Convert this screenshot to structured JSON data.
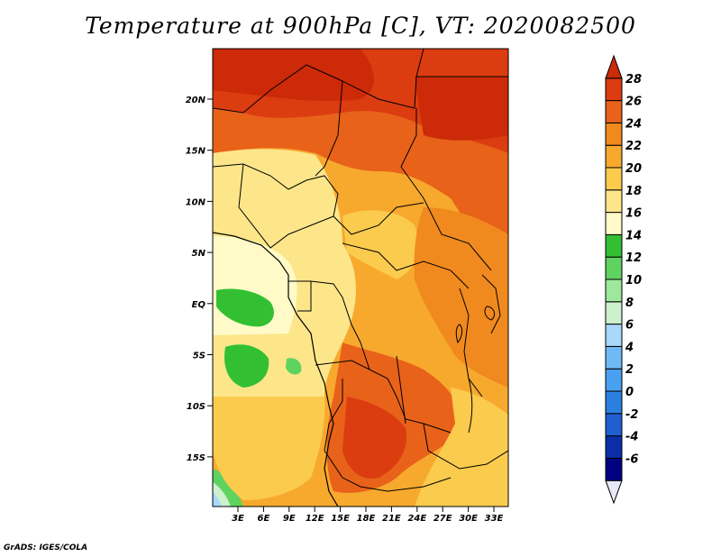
{
  "title": "Temperature at 900hPa [C], VT: 2020082500",
  "credit": "GrADS: IGES/COLA",
  "map": {
    "lat_ticks": [
      "20N",
      "15N",
      "10N",
      "5N",
      "EQ",
      "5S",
      "10S",
      "15S"
    ],
    "lon_ticks": [
      "3E",
      "6E",
      "9E",
      "12E",
      "15E",
      "18E",
      "21E",
      "24E",
      "27E",
      "30E",
      "33E"
    ]
  },
  "colorbar": {
    "labels": [
      "28",
      "26",
      "24",
      "22",
      "20",
      "18",
      "16",
      "14",
      "12",
      "10",
      "8",
      "6",
      "4",
      "2",
      "0",
      "-2",
      "-4",
      "-6"
    ],
    "colors": [
      "#e8e8f8",
      "#000080",
      "#0a2fa8",
      "#1f5fd0",
      "#2a80e0",
      "#4aa0f0",
      "#6fbaf5",
      "#a8d8fa",
      "#cdf0cd",
      "#9ee89e",
      "#5fd35f",
      "#32c032",
      "#fffac8",
      "#fde68a",
      "#fbcb4e",
      "#f7a92e",
      "#f08a1e",
      "#e8621a",
      "#db3c10",
      "#cc2a08"
    ]
  }
}
